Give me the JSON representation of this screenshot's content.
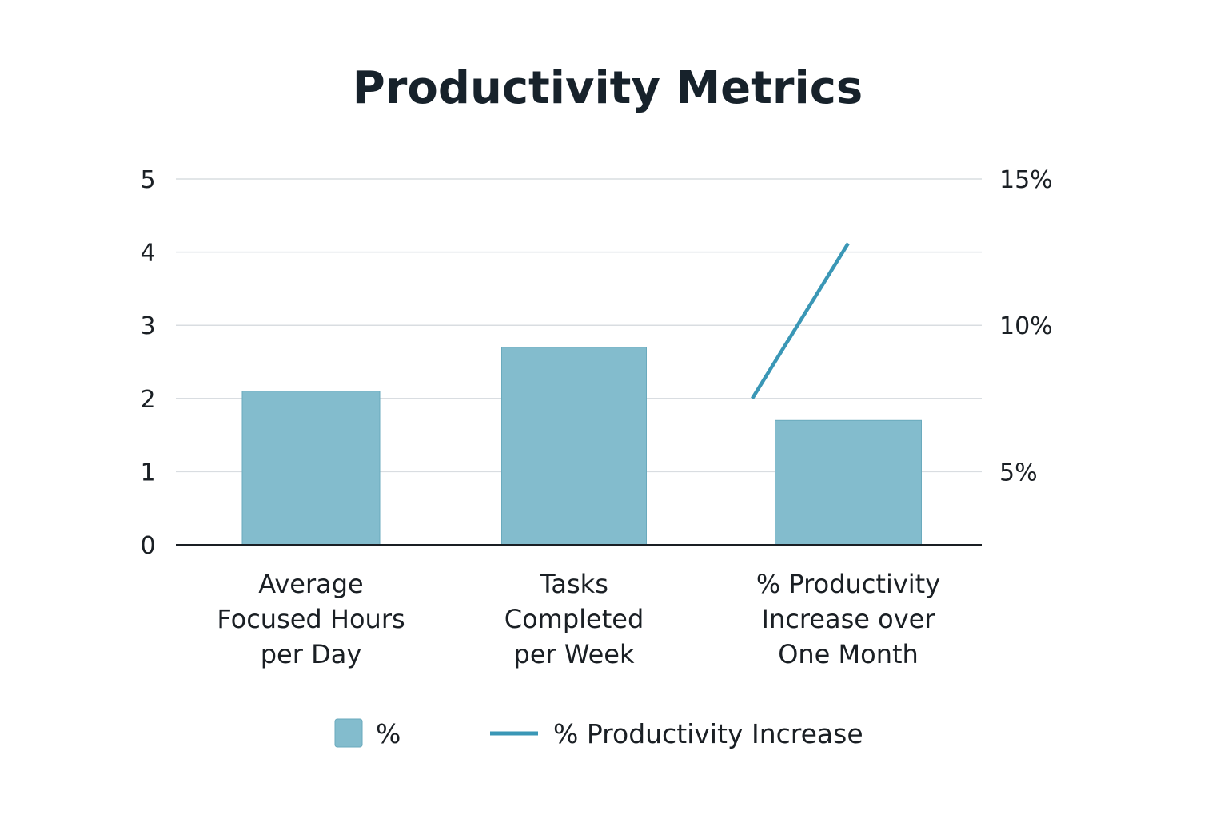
{
  "chart_data": {
    "type": "bar",
    "title": "Productivity Metrics",
    "categories": [
      [
        "Average",
        "Focused Hours",
        "per Day"
      ],
      [
        "Tasks",
        "Completed",
        "per Week"
      ],
      [
        "% Productivity",
        "Increase over",
        "One Month"
      ]
    ],
    "left_axis": {
      "ylim": [
        0,
        5
      ],
      "ticks": [
        0,
        1,
        2,
        3,
        4,
        5
      ],
      "tick_labels": [
        "0",
        "1",
        "2",
        "3",
        "4",
        "5"
      ]
    },
    "right_axis": {
      "ylim": [
        2.5,
        15
      ],
      "ticks": [
        5,
        10,
        15
      ],
      "tick_labels": [
        "5%",
        "10%",
        "15%"
      ]
    },
    "bar_series": {
      "name": "%",
      "values": [
        2.1,
        2.7,
        1.7
      ],
      "color": "#83bccd"
    },
    "line_series": {
      "name": "% Productivity Increase",
      "axis": "right",
      "x": [
        1.65,
        2.35
      ],
      "values": [
        7.5,
        12.8
      ],
      "color": "#3a97b6"
    },
    "grid": true,
    "legend": {
      "placement": "bottom",
      "items": [
        {
          "label": "%",
          "kind": "bar-swatch"
        },
        {
          "label": "% Productivity Increase",
          "kind": "line-swatch"
        }
      ]
    }
  }
}
